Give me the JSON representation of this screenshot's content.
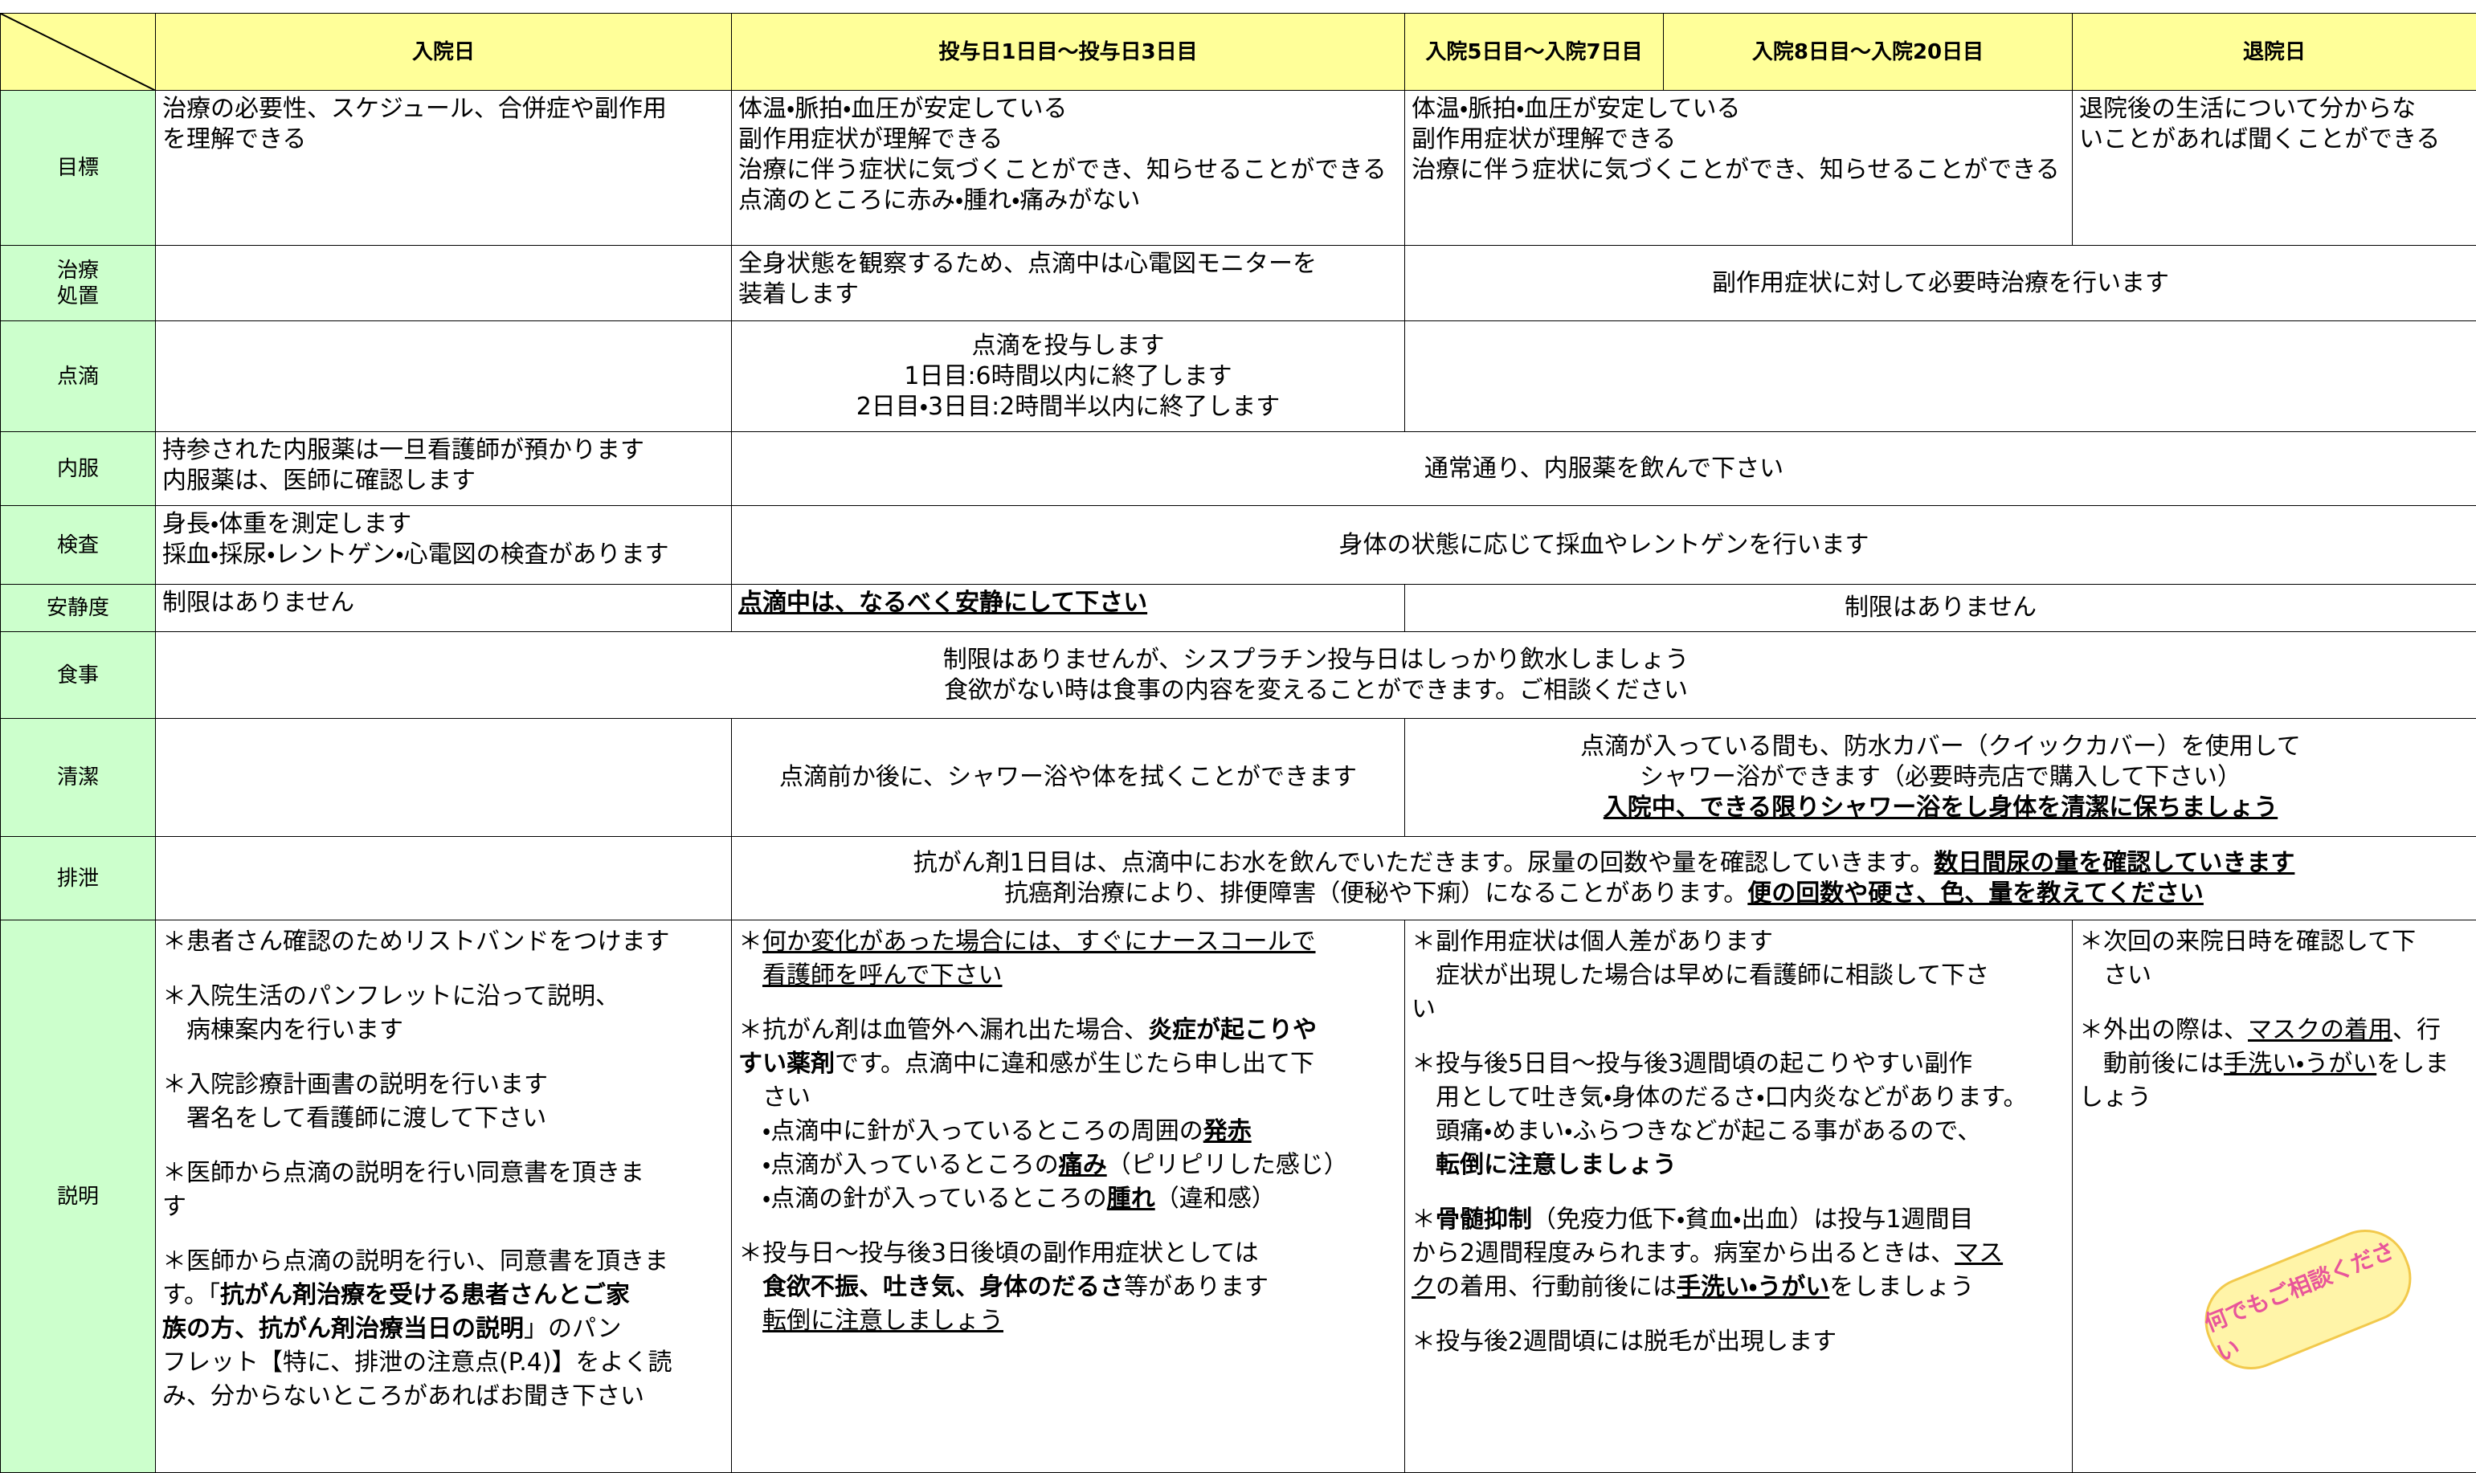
{
  "header": {
    "columns": [
      "入院日",
      "投与日1日目～投与日3日目",
      "入院5日目～入院7日目",
      "入院8日目～入院20日目",
      "退院日"
    ]
  },
  "rows": [
    {
      "label": "目標",
      "cells": [
        [
          "治療の必要性、スケジュール、合併症や副作用",
          "を理解できる"
        ],
        [
          "体温・脈拍・血圧が安定している",
          "副作用症状が理解できる",
          "治療に伴う症状に気づくことができ、知らせることができる",
          "点滴のところに赤み・腫れ・痛みがない"
        ],
        [
          "体温・脈拍・血圧が安定している",
          "副作用症状が理解できる",
          "治療に伴う症状に気づくことができ、知らせることができる"
        ],
        [
          "退院後の生活について分からな",
          "いことがあれば聞くことができる"
        ]
      ]
    },
    {
      "label": [
        "治療",
        "処置"
      ],
      "cells": [
        [
          "全身状態を観察するため、点滴中は心電図モニターを",
          "装着します"
        ],
        [
          "副作用症状に対して必要時治療を行います"
        ]
      ]
    },
    {
      "label": "点滴",
      "cells": [
        [
          "点滴を投与します",
          "1日目:6時間以内に終了します",
          "2日目・3日目:2時間半以内に終了します"
        ]
      ]
    },
    {
      "label": "内服",
      "cells": [
        [
          "持参された内服薬は一旦看護師が預かります",
          "内服薬は、医師に確認します"
        ],
        [
          "通常通り、内服薬を飲んで下さい"
        ]
      ]
    },
    {
      "label": "検査",
      "cells": [
        [
          "身長・体重を測定します",
          "採血・採尿・レントゲン・心電図の検査があります"
        ],
        [
          "身体の状態に応じて採血やレントゲンを行います"
        ]
      ]
    },
    {
      "label": "安静度",
      "cells": [
        [
          "制限はありません"
        ],
        [
          "点滴中は、なるべく安静にして下さい"
        ],
        [
          "制限はありません"
        ]
      ]
    },
    {
      "label": "食事",
      "cells": [
        [
          "制限はありませんが、シスプラチン投与日はしっかり飲水しましょう",
          "食欲がない時は食事の内容を変えることができます。ご相談ください"
        ]
      ]
    },
    {
      "label": "清潔",
      "cells": [
        [
          "点滴前か後に、シャワー浴や体を拭くことができます"
        ],
        [
          "点滴が入っている間も、防水カバー（クイックカバー）を使用して",
          "シャワー浴ができます（必要時売店で購入して下さい）",
          "入院中、できる限りシャワー浴をし身体を清潔に保ちましょう"
        ]
      ]
    },
    {
      "label": "排泄",
      "cells": [
        [
          [
            "抗がん剤1日目は、点滴中にお水を飲んでいただきます。尿量の回数や量を確認していきます。",
            "数日間尿の量を確認していきます"
          ],
          [
            "抗癌剤治療により、排便障害（便秘や下痢）になることがあります。",
            "便の回数や硬さ、色、量を教えてください"
          ]
        ]
      ]
    },
    {
      "label": "説明",
      "cells": [
        [
          "＊患者さん確認のためリストバンドをつけます",
          "＊入院生活のパンフレットに沿って説明、",
          "病棟案内を行います",
          "＊入院診療計画書の説明を行います",
          "署名をして看護師に渡して下さい",
          "＊医師から点滴の説明を行い同意書を頂きま",
          "す",
          "＊医師から点滴の説明を行い、同意書を頂きま",
          [
            "す。「",
            "抗がん剤治療を受ける患者さんとご家"
          ],
          [
            "族の方、抗がん剤治療当日の説明",
            "」のパン"
          ],
          "フレット【特に、排泄の注意点(P.4)】をよく読",
          "み、分からないところがあればお聞き下さい"
        ],
        [
          [
            "＊",
            "何か変化があった場合には、すぐにナースコールで"
          ],
          "看護師を呼んで下さい",
          [
            "＊抗がん剤は血管外へ漏れ出た場合、",
            "炎症が起こりや"
          ],
          [
            "すい薬剤",
            "です。点滴中に違和感が生じたら申し出て下"
          ],
          "さい",
          [
            "・点滴中に針が入っているところの周囲の",
            "発赤"
          ],
          [
            "・点滴が入っているところの",
            "痛み",
            "（ピリピリした感じ）"
          ],
          [
            "・点滴の針が入っているところの",
            "腫れ",
            "（違和感）"
          ],
          "＊投与日～投与後3日後頃の副作用症状としては",
          [
            "食欲不振、吐き気、身体のだるさ",
            "等があります"
          ],
          "転倒に注意しましょう"
        ],
        [
          "＊副作用症状は個人差があります",
          "症状が出現した場合は早めに看護師に相談して下さ",
          "い",
          "＊投与後5日目～投与後3週間頃の起こりやすい副作",
          "用として吐き気・身体のだるさ・口内炎などがあります。",
          "頭痛・めまい・ふらつきなどが起こる事があるので、",
          "転倒に注意しましょう",
          [
            "＊",
            "骨髄抑制",
            "（免疫力低下・貧血・出血）は投与1週間目"
          ],
          [
            "から2週間程度みられます。病室から出るときは、",
            "マス"
          ],
          [
            "ク",
            "の着用、行動前後には",
            "手洗い・うがい",
            "をしましょう"
          ],
          "＊投与後2週間頃には脱毛が出現します"
        ],
        [
          "＊次回の来院日時を確認して下",
          "さい",
          [
            "＊外出の際は、",
            "マスクの着用",
            "、行"
          ],
          [
            "動前後には",
            "手洗い・うがい",
            "をしま"
          ],
          "しょう"
        ]
      ]
    }
  ],
  "badge": "何でもご相談ください"
}
